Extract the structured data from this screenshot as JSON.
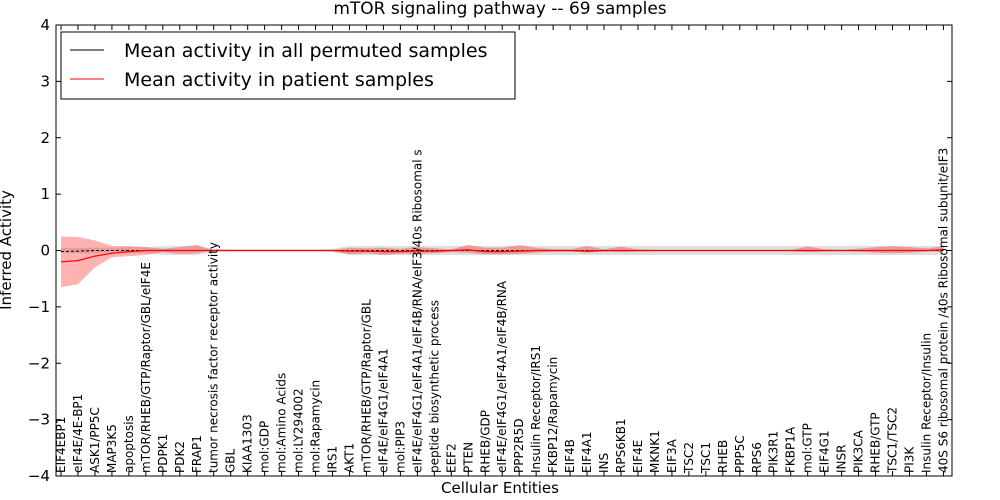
{
  "chart_data": {
    "type": "line",
    "title": "mTOR signaling pathway -- 69 samples",
    "xlabel": "Cellular Entities",
    "ylabel": "Inferred Activity",
    "ylim": [
      -4,
      4
    ],
    "yticks": [
      -4,
      -3,
      -2,
      -1,
      0,
      1,
      2,
      3,
      4
    ],
    "ytick_labels": [
      "−4",
      "−3",
      "−2",
      "−1",
      "0",
      "1",
      "2",
      "3",
      "4"
    ],
    "legend": {
      "location": "upper-left",
      "entries": [
        {
          "label": "Mean activity in all permuted samples",
          "color": "#000000"
        },
        {
          "label": "Mean activity in patient samples",
          "color": "#ff0000"
        }
      ]
    },
    "categories": [
      "EIF4EBP1",
      "eIF4E/4E-BP1",
      "ASK1/PP5C",
      "MAP3K5",
      "apoptosis",
      "mTOR/RHEB/GTP/Raptor/GBL/eIF4E",
      "PDPK1",
      "PDK2",
      "FRAP1",
      "tumor necrosis factor receptor activity",
      "GBL",
      "KIAA1303",
      "mol:GDP",
      "mol:Amino Acids",
      "mol:LY294002",
      "mol:Rapamycin",
      "IRS1",
      "AKT1",
      "mTOR/RHEB/GTP/Raptor/GBL",
      "eIF4E/eIF4G1/eIF4A1",
      "mol:PIP3",
      "eIF4E/eIF4G1/eIF4A1/eIF4B/RNA/eIF3/40s Ribosomal s",
      "peptide biosynthetic process",
      "EEF2",
      "PTEN",
      "RHEB/GDP",
      "eIF4E/eIF4G1/eIF4A1/eIF4B/RNA",
      "PPP2R5D",
      "Insulin Receptor/IRS1",
      "FKBP12/Rapamycin",
      "EIF4B",
      "EIF4A1",
      "INS",
      "RPS6KB1",
      "EIF4E",
      "MKNK1",
      "EIF3A",
      "TSC2",
      "TSC1",
      "RHEB",
      "PPP5C",
      "RPS6",
      "PIK3R1",
      "FKBP1A",
      "mol:GTP",
      "EIF4G1",
      "INSR",
      "PIK3CA",
      "RHEB/GTP",
      "TSC1/TSC2",
      "PI3K",
      "Insulin Receptor/Insulin",
      "40S S6 ribosomal protein /40s Ribosomal subunit/eIF3"
    ],
    "series": [
      {
        "name": "Mean activity in all permuted samples",
        "color": "#000000",
        "style": "dashed",
        "values": [
          -0.02,
          -0.01,
          0,
          0,
          0,
          0,
          0,
          0,
          0,
          0,
          0,
          0,
          0,
          0,
          0,
          0,
          0,
          0,
          0,
          0,
          0,
          0,
          0,
          0,
          0,
          0,
          0,
          0,
          0,
          0,
          0,
          0,
          0,
          0,
          0,
          0,
          0,
          0,
          0,
          0,
          0,
          0,
          0,
          0,
          0,
          0,
          0,
          0,
          0,
          0,
          0,
          0,
          0
        ],
        "band_low": [
          -0.05,
          -0.05,
          -0.05,
          -0.05,
          -0.05,
          -0.05,
          -0.08,
          -0.08,
          -0.08,
          -0.03,
          -0.02,
          -0.02,
          -0.02,
          -0.02,
          -0.02,
          -0.02,
          -0.03,
          -0.08,
          -0.08,
          -0.08,
          -0.08,
          -0.08,
          -0.08,
          -0.08,
          -0.08,
          -0.08,
          -0.08,
          -0.08,
          -0.08,
          -0.08,
          -0.08,
          -0.08,
          -0.08,
          -0.08,
          -0.08,
          -0.08,
          -0.08,
          -0.08,
          -0.08,
          -0.08,
          -0.08,
          -0.08,
          -0.08,
          -0.08,
          -0.08,
          -0.08,
          -0.08,
          -0.08,
          -0.08,
          -0.08,
          -0.08,
          -0.08,
          -0.08
        ],
        "band_high": [
          0.05,
          0.05,
          0.05,
          0.05,
          0.06,
          0.06,
          0.08,
          0.08,
          0.08,
          0.03,
          0.02,
          0.02,
          0.02,
          0.02,
          0.02,
          0.02,
          0.03,
          0.08,
          0.08,
          0.08,
          0.08,
          0.08,
          0.08,
          0.08,
          0.08,
          0.08,
          0.08,
          0.08,
          0.08,
          0.08,
          0.08,
          0.08,
          0.08,
          0.08,
          0.08,
          0.08,
          0.08,
          0.08,
          0.08,
          0.08,
          0.08,
          0.08,
          0.08,
          0.08,
          0.08,
          0.08,
          0.08,
          0.08,
          0.08,
          0.08,
          0.08,
          0.08,
          0.08
        ]
      },
      {
        "name": "Mean activity in patient samples",
        "color": "#ff0000",
        "style": "solid",
        "values": [
          -0.2,
          -0.18,
          -0.1,
          -0.05,
          -0.02,
          0,
          0,
          0,
          0,
          0,
          0,
          0,
          0,
          0,
          0,
          0,
          0,
          -0.01,
          -0.01,
          -0.02,
          -0.02,
          -0.01,
          -0.01,
          0,
          0.01,
          -0.02,
          -0.02,
          -0.01,
          0,
          0,
          0,
          -0.01,
          0,
          0,
          0,
          0,
          0,
          0,
          0,
          0,
          0,
          0,
          0,
          0,
          0,
          0,
          0,
          0,
          0,
          0,
          0,
          0,
          0.01
        ],
        "band_low": [
          -0.65,
          -0.6,
          -0.3,
          -0.12,
          -0.1,
          -0.08,
          -0.03,
          -0.06,
          -0.05,
          0,
          0,
          0,
          0,
          0,
          0,
          0,
          -0.01,
          -0.07,
          -0.05,
          -0.08,
          -0.06,
          -0.06,
          -0.05,
          -0.03,
          -0.04,
          -0.07,
          -0.07,
          -0.06,
          -0.04,
          -0.02,
          -0.02,
          -0.04,
          -0.02,
          -0.03,
          -0.02,
          -0.01,
          -0.01,
          -0.01,
          -0.01,
          -0.01,
          -0.01,
          -0.01,
          -0.01,
          -0.01,
          -0.03,
          -0.02,
          -0.01,
          -0.02,
          -0.04,
          -0.05,
          -0.04,
          -0.02,
          -0.02
        ],
        "band_high": [
          0.25,
          0.24,
          0.18,
          0.08,
          0.08,
          0.06,
          0.03,
          0.06,
          0.1,
          0,
          0,
          0,
          0,
          0,
          0,
          0,
          0.01,
          0.05,
          0.04,
          0.05,
          0.03,
          0.06,
          0.04,
          0.02,
          0.1,
          0.05,
          0.05,
          0.1,
          0.05,
          0.02,
          0.02,
          0.08,
          0.02,
          0.07,
          0.02,
          0.01,
          0.01,
          0.01,
          0.01,
          0.01,
          0.01,
          0.01,
          0.01,
          0.01,
          0.07,
          0.02,
          0.01,
          0.03,
          0.06,
          0.08,
          0.06,
          0.04,
          0.07
        ]
      }
    ]
  }
}
